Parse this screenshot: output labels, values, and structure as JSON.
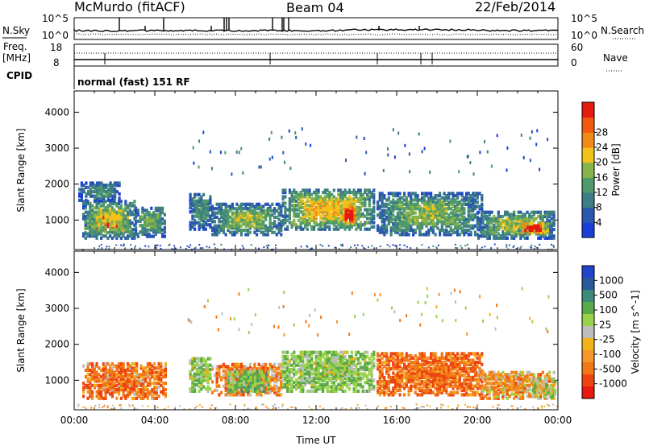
{
  "header": {
    "title": "McMurdo (fitACF)",
    "beam": "Beam 04",
    "date": "22/Feb/2014"
  },
  "summary_panels": {
    "nsky_label": "N.Sky",
    "nsky_ticks": [
      "10^5",
      "10^0"
    ],
    "nsearch_label": "N.Search",
    "freq_label_1": "Freq.",
    "freq_label_2": "[MHz]",
    "freq_ticks": [
      "18",
      "8"
    ],
    "nave_ticks": [
      "60",
      "0"
    ],
    "nave_label": "Nave",
    "cpid_label": "CPID",
    "cpid_text": "normal (fast) 151 RF"
  },
  "chart_data": [
    {
      "type": "heatmap",
      "name": "power",
      "ylabel": "Slant Range [km]",
      "xlabel": "",
      "xlim_hours": [
        0,
        24
      ],
      "ylim": [
        180,
        4590
      ],
      "yticks": [
        1000,
        2000,
        3000,
        4000
      ],
      "colorbar": {
        "label": "Power [dB]",
        "ticks": [
          "4",
          "8",
          "12",
          "16",
          "20",
          "24",
          "28"
        ],
        "levels": [
          0,
          4,
          8,
          12,
          16,
          20,
          24,
          28,
          32
        ],
        "colors": [
          "#1a3fd6",
          "#2a57b0",
          "#3e7d86",
          "#4f9a6a",
          "#88b24a",
          "#f2c21a",
          "#f28a18",
          "#f25a12",
          "#e61a10"
        ]
      },
      "regions": [
        {
          "t0": 0.5,
          "t1": 2.7,
          "r0": 600,
          "r1": 1150,
          "v": 26
        },
        {
          "t0": 0.4,
          "t1": 3.0,
          "r0": 450,
          "r1": 1500,
          "v": 14
        },
        {
          "t0": 0.2,
          "t1": 2.2,
          "r0": 1500,
          "r1": 2000,
          "v": 9
        },
        {
          "t0": 3.0,
          "t1": 4.5,
          "r0": 500,
          "r1": 1300,
          "v": 11
        },
        {
          "t0": 5.7,
          "t1": 6.8,
          "r0": 700,
          "r1": 1700,
          "v": 9
        },
        {
          "t0": 6.8,
          "t1": 10.3,
          "r0": 550,
          "r1": 1400,
          "v": 12
        },
        {
          "t0": 10.3,
          "t1": 14.9,
          "r0": 700,
          "r1": 1800,
          "v": 16
        },
        {
          "t0": 13.2,
          "t1": 14.0,
          "r0": 800,
          "r1": 1400,
          "v": 26
        },
        {
          "t0": 15.0,
          "t1": 20.2,
          "r0": 550,
          "r1": 1700,
          "v": 12
        },
        {
          "t0": 20.0,
          "t1": 23.8,
          "r0": 450,
          "r1": 1200,
          "v": 13
        },
        {
          "t0": 22.0,
          "t1": 23.5,
          "r0": 550,
          "r1": 900,
          "v": 25
        }
      ]
    },
    {
      "type": "heatmap",
      "name": "velocity",
      "ylabel": "Slant Range [km]",
      "xlabel": "Time UT",
      "xlim_hours": [
        0,
        24
      ],
      "xticks": [
        "00:00",
        "04:00",
        "08:00",
        "12:00",
        "16:00",
        "20:00",
        "00:00"
      ],
      "ylim": [
        180,
        4590
      ],
      "yticks": [
        1000,
        2000,
        3000,
        4000
      ],
      "colorbar": {
        "label": "Velocity [m s^-1]",
        "ticks": [
          "1000",
          "500",
          "100",
          "25",
          "-25",
          "-100",
          "-500",
          "-1000"
        ],
        "colors": [
          "#2244cc",
          "#2a5a9a",
          "#3e8a7a",
          "#5aaa4a",
          "#9ad24a",
          "#bdbdbd",
          "#f3b41a",
          "#f59628",
          "#f07818",
          "#ee4410",
          "#e61a10"
        ]
      },
      "regions": [
        {
          "t0": 0.4,
          "t1": 4.5,
          "r0": 450,
          "r1": 1450,
          "v": -200
        },
        {
          "t0": 5.7,
          "t1": 6.8,
          "r0": 650,
          "r1": 1600,
          "v": 200
        },
        {
          "t0": 6.8,
          "t1": 10.3,
          "r0": 550,
          "r1": 1400,
          "v": -150
        },
        {
          "t0": 7.6,
          "t1": 9.6,
          "r0": 650,
          "r1": 1200,
          "v": 300
        },
        {
          "t0": 10.3,
          "t1": 14.9,
          "r0": 650,
          "r1": 1750,
          "v": 250
        },
        {
          "t0": 15.0,
          "t1": 20.2,
          "r0": 550,
          "r1": 1750,
          "v": -250
        },
        {
          "t0": 20.0,
          "t1": 23.8,
          "r0": 450,
          "r1": 1200,
          "v": -100
        },
        {
          "t0": 22.7,
          "t1": 23.8,
          "r0": 500,
          "r1": 1000,
          "v": 150
        }
      ]
    }
  ]
}
